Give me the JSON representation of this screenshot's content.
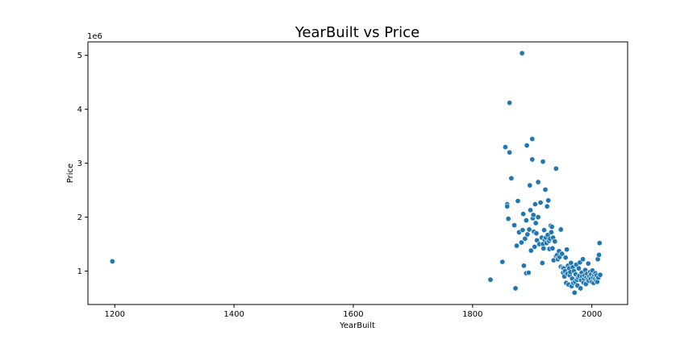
{
  "chart_data": {
    "type": "scatter",
    "title": "YearBuilt vs Price",
    "xlabel": "YearBuilt",
    "ylabel": "Price",
    "y_offset_label": "1e6",
    "xlim": [
      1155,
      2060
    ],
    "ylim": [
      0.38,
      5.25
    ],
    "xticks": [
      1200,
      1400,
      1600,
      1800,
      2000
    ],
    "yticks": [
      1,
      2,
      3,
      4,
      5
    ],
    "grid": false,
    "color": "#1f77b4",
    "points": [
      [
        1196,
        1.18
      ],
      [
        1830,
        0.84
      ],
      [
        1850,
        1.17
      ],
      [
        1855,
        3.3
      ],
      [
        1858,
        2.24
      ],
      [
        1858,
        2.2
      ],
      [
        1860,
        1.97
      ],
      [
        1862,
        3.2
      ],
      [
        1862,
        4.12
      ],
      [
        1865,
        2.72
      ],
      [
        1870,
        1.85
      ],
      [
        1872,
        0.68
      ],
      [
        1874,
        1.47
      ],
      [
        1876,
        2.3
      ],
      [
        1878,
        1.72
      ],
      [
        1882,
        1.53
      ],
      [
        1883,
        5.04
      ],
      [
        1884,
        1.76
      ],
      [
        1885,
        2.06
      ],
      [
        1886,
        1.1
      ],
      [
        1888,
        1.6
      ],
      [
        1890,
        1.94
      ],
      [
        1890,
        0.96
      ],
      [
        1891,
        3.33
      ],
      [
        1892,
        1.68
      ],
      [
        1894,
        0.97
      ],
      [
        1895,
        1.77
      ],
      [
        1896,
        2.59
      ],
      [
        1897,
        2.13
      ],
      [
        1898,
        1.38
      ],
      [
        1900,
        3.07
      ],
      [
        1900,
        3.45
      ],
      [
        1901,
        1.98
      ],
      [
        1902,
        2.04
      ],
      [
        1903,
        1.73
      ],
      [
        1904,
        1.45
      ],
      [
        1905,
        2.24
      ],
      [
        1906,
        1.89
      ],
      [
        1907,
        1.7
      ],
      [
        1908,
        1.57
      ],
      [
        1910,
        2.0
      ],
      [
        1910,
        2.65
      ],
      [
        1912,
        1.5
      ],
      [
        1914,
        2.27
      ],
      [
        1916,
        1.62
      ],
      [
        1917,
        1.15
      ],
      [
        1918,
        1.5
      ],
      [
        1918,
        3.03
      ],
      [
        1919,
        1.42
      ],
      [
        1920,
        1.76
      ],
      [
        1921,
        1.58
      ],
      [
        1922,
        2.51
      ],
      [
        1923,
        1.62
      ],
      [
        1924,
        1.52
      ],
      [
        1925,
        2.2
      ],
      [
        1926,
        1.67
      ],
      [
        1927,
        2.31
      ],
      [
        1928,
        1.56
      ],
      [
        1929,
        1.41
      ],
      [
        1930,
        1.6
      ],
      [
        1931,
        1.84
      ],
      [
        1932,
        1.72
      ],
      [
        1933,
        1.82
      ],
      [
        1934,
        1.42
      ],
      [
        1935,
        1.62
      ],
      [
        1936,
        1.2
      ],
      [
        1938,
        1.55
      ],
      [
        1940,
        2.9
      ],
      [
        1940,
        1.28
      ],
      [
        1942,
        1.3
      ],
      [
        1943,
        1.22
      ],
      [
        1945,
        1.37
      ],
      [
        1946,
        1.26
      ],
      [
        1948,
        1.77
      ],
      [
        1948,
        1.08
      ],
      [
        1950,
        1.32
      ],
      [
        1951,
        1.06
      ],
      [
        1952,
        0.97
      ],
      [
        1953,
        1.05
      ],
      [
        1954,
        0.9
      ],
      [
        1955,
        1.0
      ],
      [
        1956,
        1.25
      ],
      [
        1957,
        0.78
      ],
      [
        1958,
        1.4
      ],
      [
        1959,
        0.95
      ],
      [
        1960,
        1.1
      ],
      [
        1961,
        0.75
      ],
      [
        1962,
        1.05
      ],
      [
        1963,
        0.92
      ],
      [
        1964,
        0.98
      ],
      [
        1965,
        1.15
      ],
      [
        1966,
        0.72
      ],
      [
        1967,
        0.86
      ],
      [
        1968,
        1.07
      ],
      [
        1969,
        0.78
      ],
      [
        1970,
        1.0
      ],
      [
        1971,
        0.6
      ],
      [
        1972,
        0.8
      ],
      [
        1973,
        0.94
      ],
      [
        1974,
        1.12
      ],
      [
        1975,
        0.84
      ],
      [
        1976,
        0.73
      ],
      [
        1977,
        0.88
      ],
      [
        1978,
        1.05
      ],
      [
        1979,
        0.91
      ],
      [
        1980,
        1.16
      ],
      [
        1981,
        0.68
      ],
      [
        1982,
        0.83
      ],
      [
        1983,
        0.97
      ],
      [
        1984,
        0.9
      ],
      [
        1985,
        1.22
      ],
      [
        1986,
        0.79
      ],
      [
        1987,
        0.86
      ],
      [
        1988,
        0.92
      ],
      [
        1989,
        1.02
      ],
      [
        1990,
        0.76
      ],
      [
        1991,
        0.88
      ],
      [
        1992,
        0.95
      ],
      [
        1993,
        0.84
      ],
      [
        1994,
        1.14
      ],
      [
        1995,
        0.82
      ],
      [
        1996,
        0.9
      ],
      [
        1997,
        0.98
      ],
      [
        1998,
        0.86
      ],
      [
        1999,
        0.94
      ],
      [
        2000,
        0.8
      ],
      [
        2001,
        1.01
      ],
      [
        2002,
        0.88
      ],
      [
        2003,
        0.78
      ],
      [
        2004,
        0.93
      ],
      [
        2005,
        0.85
      ],
      [
        2006,
        0.96
      ],
      [
        2007,
        0.82
      ],
      [
        2008,
        0.92
      ],
      [
        2009,
        0.8
      ],
      [
        2010,
        1.22
      ],
      [
        2011,
        0.88
      ],
      [
        2012,
        1.3
      ],
      [
        2013,
        1.52
      ],
      [
        2014,
        0.93
      ]
    ]
  }
}
